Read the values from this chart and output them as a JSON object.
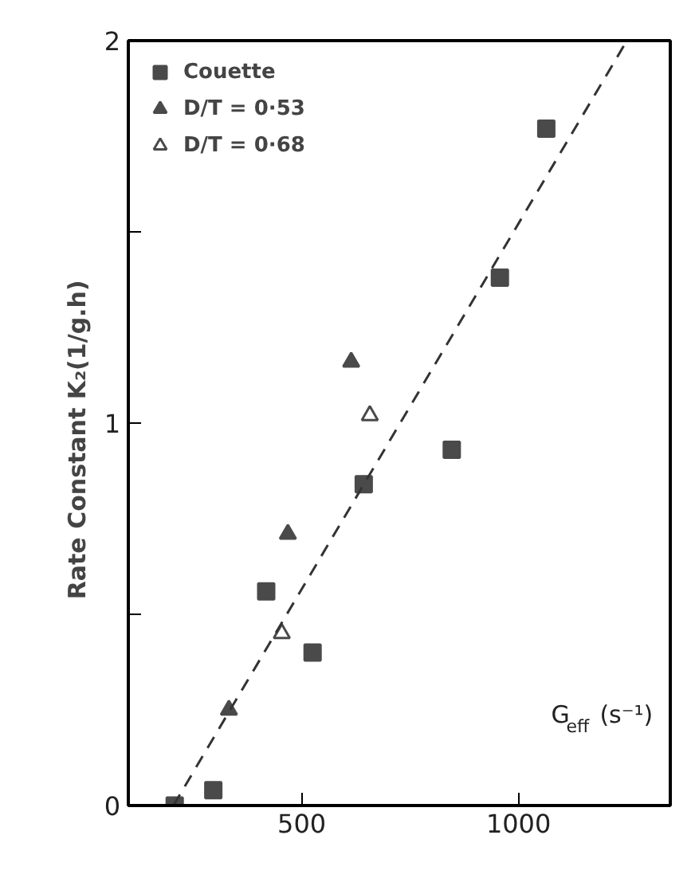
{
  "chart_data": {
    "type": "scatter",
    "xlabel": "G$_{eff}$ (s⁻¹)",
    "ylabel": "Rate   Constant   K₂(1/g.h)",
    "xlim": [
      100,
      1350
    ],
    "ylim": [
      0,
      2
    ],
    "xticks": [
      500,
      1000
    ],
    "yticks": [
      0,
      {
        "value": 0.5,
        "label": null
      },
      1,
      {
        "value": 1.5,
        "label": null
      },
      2
    ],
    "grid": false,
    "legend": "top left",
    "series": [
      {
        "name": "Couette",
        "color": "#4a4a4a",
        "marker": "square",
        "x": [
          207,
          296,
          418,
          525,
          643,
          846,
          957,
          1064
        ],
        "values": [
          0,
          0.04,
          0.56,
          0.4,
          0.84,
          0.93,
          1.38,
          1.77
        ]
      },
      {
        "name": "D/T = 0·53",
        "color": "#4a4a4a",
        "marker": "triangle",
        "x": [
          332,
          468,
          614
        ],
        "values": [
          0.25,
          0.71,
          1.16
        ]
      },
      {
        "name": "D/T = 0·68",
        "color": "#ffffff",
        "marker": "triangle",
        "x": [
          454,
          657
        ],
        "values": [
          0.45,
          1.02
        ]
      },
      {
        "type": "line",
        "color": "#333333",
        "line_style": "dashed",
        "marker": "none",
        "x": [
          204,
          1250
        ],
        "values": [
          0,
          2
        ]
      }
    ]
  }
}
